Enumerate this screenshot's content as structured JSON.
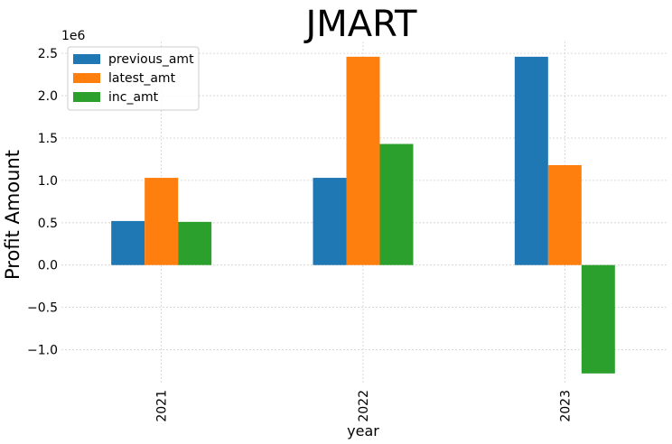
{
  "chart_data": {
    "type": "bar",
    "title": "JMART",
    "xlabel": "year",
    "ylabel": "Profit Amount",
    "offset_text": "1e6",
    "categories": [
      "2021",
      "2022",
      "2023"
    ],
    "series": [
      {
        "name": "previous_amt",
        "color": "#1f77b4",
        "values": [
          520000,
          1030000,
          2460000
        ]
      },
      {
        "name": "latest_amt",
        "color": "#ff7f0e",
        "values": [
          1030000,
          2460000,
          1180000
        ]
      },
      {
        "name": "inc_amt",
        "color": "#2ca02c",
        "values": [
          510000,
          1430000,
          -1280000
        ]
      }
    ],
    "yticks": [
      -1.0,
      -0.5,
      0.0,
      0.5,
      1.0,
      1.5,
      2.0,
      2.5
    ],
    "ytick_labels": [
      "−1.0",
      "−0.5",
      "0.0",
      "0.5",
      "1.0",
      "1.5",
      "2.0",
      "2.5"
    ],
    "ylim": [
      -1410000,
      2640000
    ],
    "grid": true,
    "legend_position": "top-left"
  }
}
